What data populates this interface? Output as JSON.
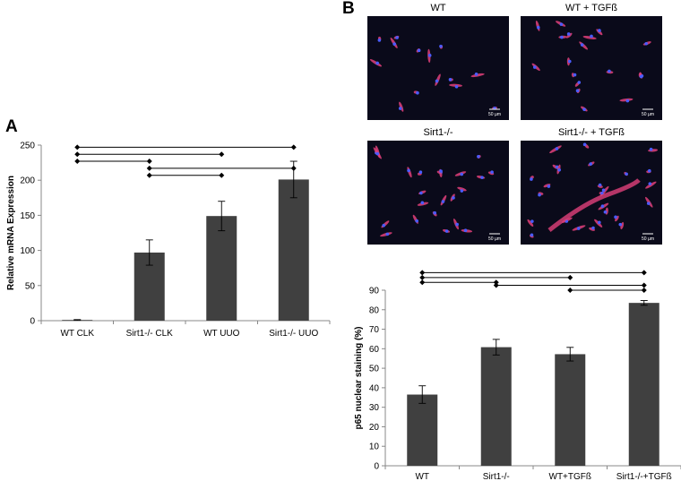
{
  "panels": {
    "a_letter": "A",
    "b_letter": "B"
  },
  "micrographs": [
    {
      "title": "WT",
      "scale_label": "50 µm",
      "cells": 14,
      "seed": 3
    },
    {
      "title": "WT + TGFß",
      "scale_label": "50 µm",
      "cells": 18,
      "seed": 7
    },
    {
      "title": "Sirt1-/-",
      "scale_label": "50 µm",
      "cells": 22,
      "seed": 11
    },
    {
      "title": "Sirt1-/- + TGFß",
      "scale_label": "50 µm",
      "cells": 26,
      "seed": 19
    }
  ],
  "colors": {
    "bar": "#404040",
    "image_bg": "#0a0a1a",
    "stain_red": "#e0407a",
    "stain_blue": "#4a5cff"
  },
  "chart_data": [
    {
      "type": "bar",
      "panel": "A",
      "categories": [
        "WT CLK",
        "Sirt1-/- CLK",
        "WT UUO",
        "Sirt1-/- UUO"
      ],
      "values": [
        1,
        97,
        149,
        201
      ],
      "errors": [
        0.5,
        18,
        21,
        26
      ],
      "ylabel": "Relative mRNA Expression",
      "ylim": [
        0,
        250
      ],
      "yticks": [
        0,
        50,
        100,
        150,
        200,
        250
      ],
      "grid": false,
      "significance_brackets": [
        {
          "from": 0,
          "to": 3,
          "y": 247
        },
        {
          "from": 0,
          "to": 2,
          "y": 237
        },
        {
          "from": 0,
          "to": 1,
          "y": 227
        },
        {
          "from": 1,
          "to": 3,
          "y": 217
        },
        {
          "from": 1,
          "to": 2,
          "y": 207
        }
      ]
    },
    {
      "type": "bar",
      "panel": "B",
      "categories": [
        "WT",
        "Sirt1-/-",
        "WT+TGFß",
        "Sirt1-/-+TGFß"
      ],
      "values": [
        36.5,
        60.8,
        57.2,
        83.5
      ],
      "errors": [
        4.5,
        4,
        3.5,
        1.2
      ],
      "ylabel": "p65 nuclear staining (%)",
      "ylim": [
        0,
        90
      ],
      "yticks": [
        0,
        10,
        20,
        30,
        40,
        50,
        60,
        70,
        80,
        90
      ],
      "grid": false,
      "significance_brackets": [
        {
          "from": 0,
          "to": 3,
          "y": 99
        },
        {
          "from": 0,
          "to": 2,
          "y": 96.5
        },
        {
          "from": 0,
          "to": 1,
          "y": 94
        },
        {
          "from": 1,
          "to": 3,
          "y": 92.5
        },
        {
          "from": 2,
          "to": 3,
          "y": 90
        }
      ]
    }
  ]
}
